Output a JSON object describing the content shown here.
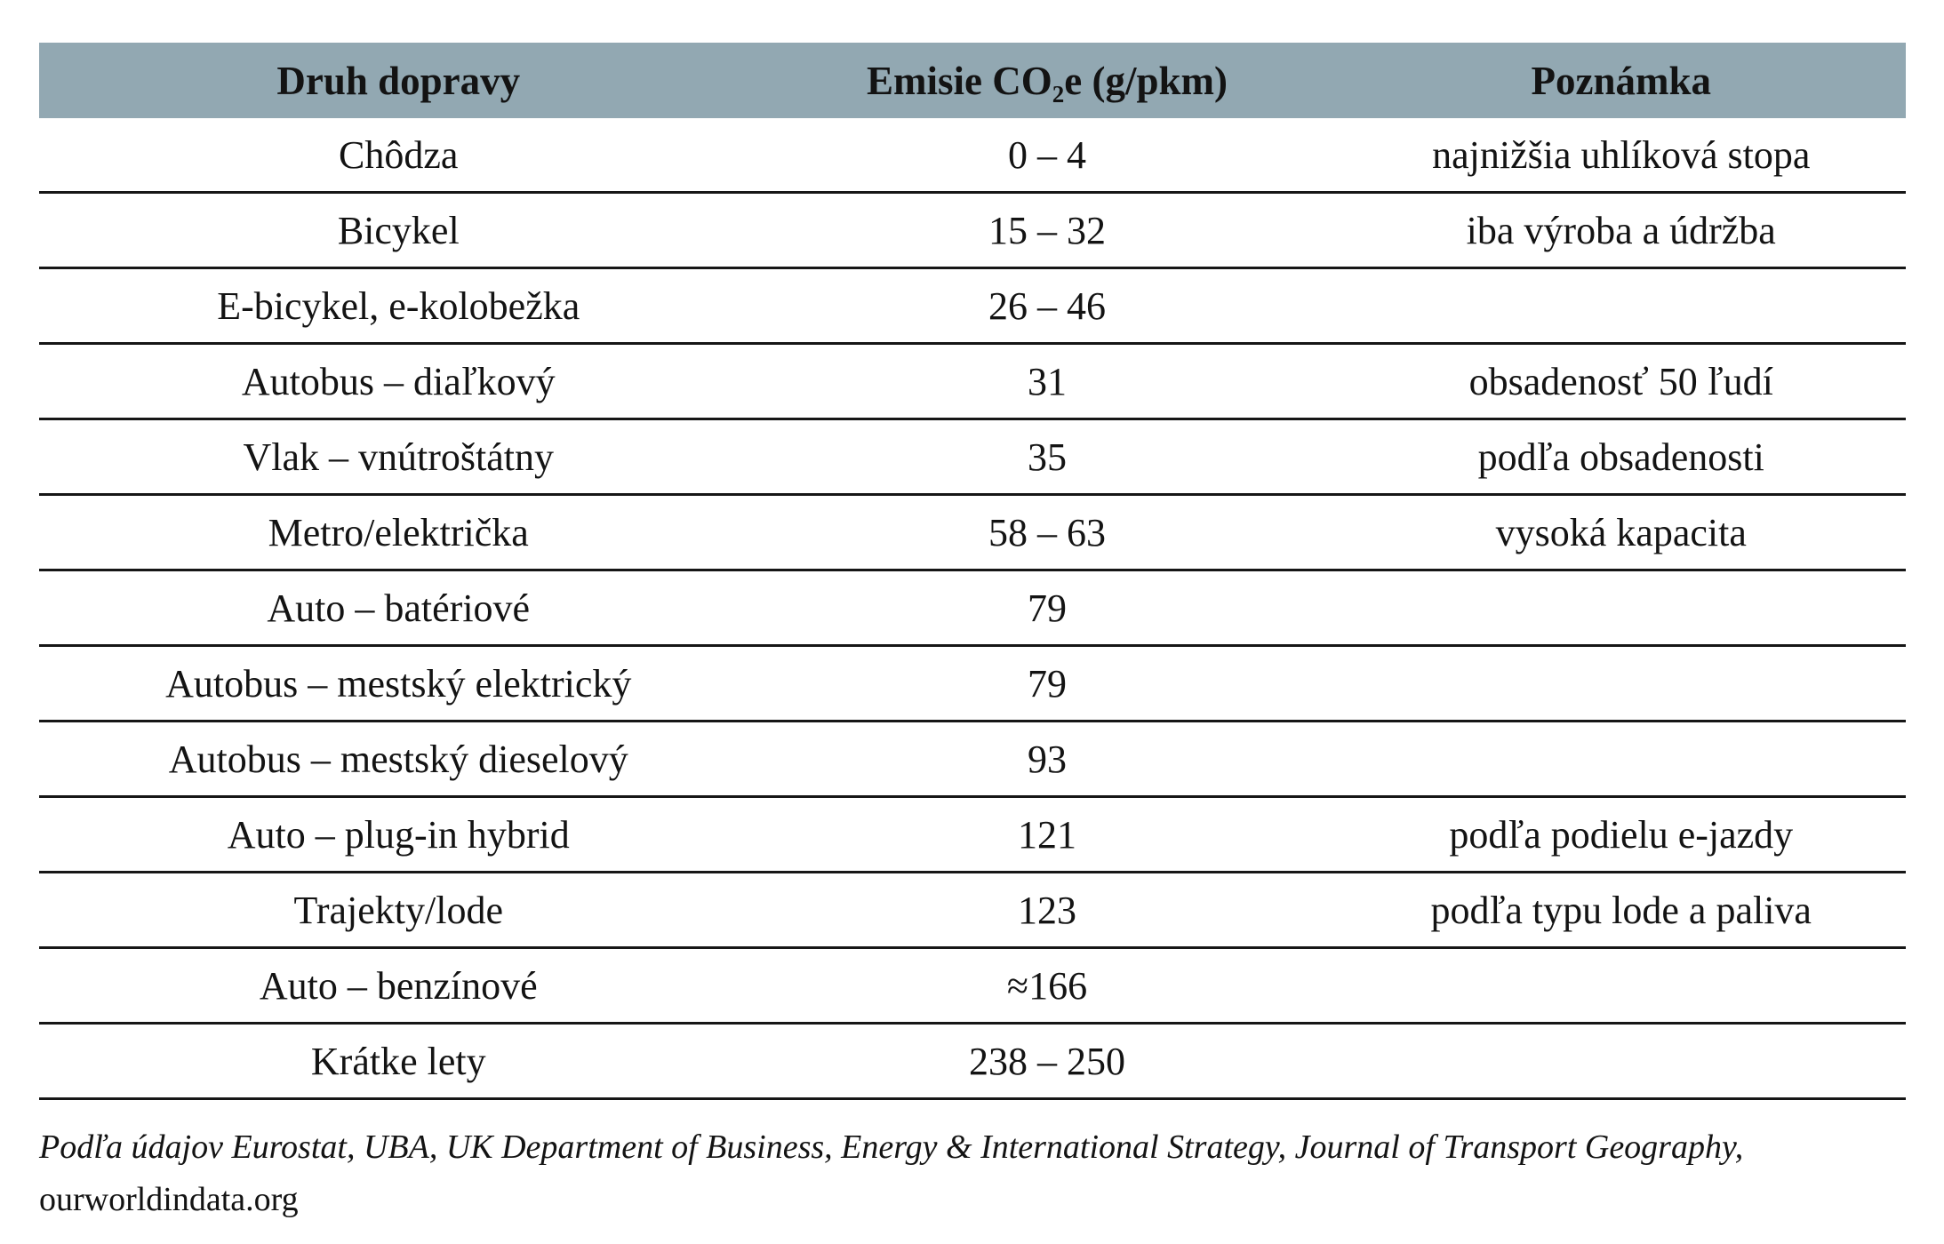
{
  "table": {
    "columns": [
      "Druh dopravy",
      "Emisie CO₂e (g/pkm)",
      "Poznámka"
    ],
    "rows": [
      {
        "mode": "Chôdza",
        "emissions": "0 – 4",
        "note": "najnižšia uhlíková stopa"
      },
      {
        "mode": "Bicykel",
        "emissions": "15 – 32",
        "note": "iba výroba a údržba"
      },
      {
        "mode": "E-bicykel, e-kolobežka",
        "emissions": "26 – 46",
        "note": ""
      },
      {
        "mode": "Autobus – diaľkový",
        "emissions": "31",
        "note": "obsadenosť 50 ľudí"
      },
      {
        "mode": "Vlak – vnútroštátny",
        "emissions": "35",
        "note": "podľa obsadenosti"
      },
      {
        "mode": "Metro/električka",
        "emissions": "58 – 63",
        "note": "vysoká kapacita"
      },
      {
        "mode": "Auto – batériové",
        "emissions": "79",
        "note": ""
      },
      {
        "mode": "Autobus – mestský elektrický",
        "emissions": "79",
        "note": ""
      },
      {
        "mode": "Autobus – mestský dieselový",
        "emissions": "93",
        "note": ""
      },
      {
        "mode": "Auto – plug-in hybrid",
        "emissions": "121",
        "note": "podľa podielu e-jazdy"
      },
      {
        "mode": "Trajekty/lode",
        "emissions": "123",
        "note": "podľa typu lode a paliva"
      },
      {
        "mode": "Auto – benzínové",
        "emissions": "≈166",
        "note": ""
      },
      {
        "mode": "Krátke lety",
        "emissions": "238 – 250",
        "note": ""
      }
    ]
  },
  "footer": {
    "line1": "Podľa údajov Eurostat, UBA, UK Department of Business, Energy & International Strategy, Journal of Transport Geography,",
    "line2": "ourworldindata.org"
  },
  "colors": {
    "header_bg": "#92a8b2",
    "divider": "#161616",
    "text": "#131313"
  }
}
